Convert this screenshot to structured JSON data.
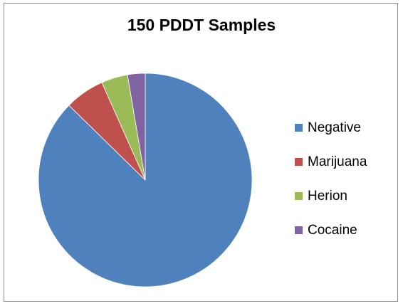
{
  "chart_data": {
    "type": "pie",
    "title": "150 PDDT Samples",
    "categories": [
      "Negative",
      "Marijuana",
      "Herion",
      "Cocaine"
    ],
    "values": [
      131,
      9,
      6,
      4
    ],
    "colors": [
      "#4f81bd",
      "#c0504d",
      "#9bbb59",
      "#8064a2"
    ],
    "legend_position": "right",
    "start_angle": "12 o'clock",
    "direction": "clockwise"
  }
}
